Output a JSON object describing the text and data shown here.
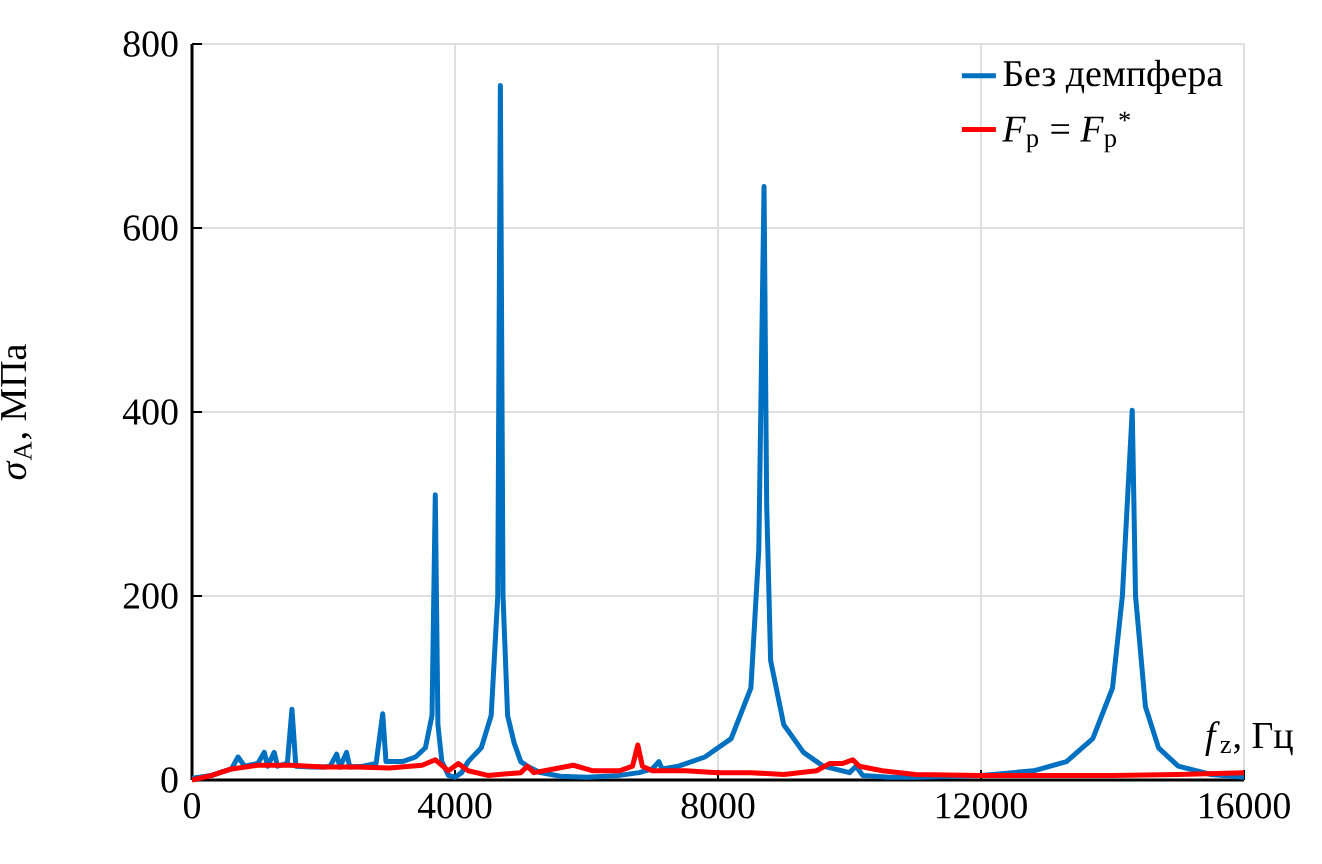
{
  "chart_data": {
    "type": "line",
    "xlabel": "*f*$_{z}$, Гц",
    "ylabel": "*σ*$_{A}$, МПа",
    "xlim": [
      0,
      16000
    ],
    "ylim": [
      0,
      800
    ],
    "xticks": [
      0,
      4000,
      8000,
      12000,
      16000
    ],
    "yticks": [
      0,
      200,
      400,
      600,
      800
    ],
    "grid": true,
    "legend": "top right",
    "marker": "none",
    "line_style": "solid",
    "series": [
      {
        "name": "Без демпфера",
        "color": "#0070c0",
        "x": [
          0,
          300,
          600,
          700,
          800,
          1000,
          1100,
          1150,
          1250,
          1300,
          1450,
          1520,
          1580,
          1800,
          2000,
          2100,
          2200,
          2250,
          2350,
          2400,
          2600,
          2800,
          2900,
          2950,
          3200,
          3400,
          3550,
          3650,
          3700,
          3740,
          3800,
          3900,
          4000,
          4100,
          4200,
          4400,
          4550,
          4650,
          4690,
          4730,
          4800,
          4900,
          5000,
          5100,
          5300,
          5600,
          6000,
          6500,
          6800,
          7000,
          7100,
          7150,
          7400,
          7800,
          8200,
          8500,
          8620,
          8700,
          8740,
          8800,
          9000,
          9300,
          9600,
          10000,
          10100,
          10200,
          10600,
          11000,
          12000,
          12800,
          13300,
          13700,
          14000,
          14150,
          14300,
          14350,
          14500,
          14700,
          15000,
          15500,
          16000
        ],
        "values": [
          2,
          5,
          12,
          25,
          15,
          18,
          30,
          15,
          30,
          15,
          18,
          77,
          15,
          14,
          14,
          15,
          28,
          14,
          30,
          14,
          15,
          18,
          72,
          20,
          20,
          25,
          35,
          70,
          310,
          60,
          20,
          5,
          3,
          8,
          20,
          35,
          70,
          200,
          755,
          200,
          70,
          40,
          20,
          15,
          8,
          4,
          3,
          5,
          8,
          12,
          20,
          12,
          15,
          25,
          45,
          100,
          250,
          645,
          300,
          130,
          60,
          30,
          15,
          8,
          15,
          5,
          3,
          3,
          5,
          10,
          20,
          45,
          100,
          200,
          402,
          200,
          80,
          35,
          15,
          6,
          3
        ]
      },
      {
        "name": "*F*$_{p}$ = *F*$_{p}$$^{*}$",
        "color": "#ff0000",
        "x": [
          0,
          300,
          600,
          1000,
          1500,
          2000,
          2500,
          3000,
          3500,
          3700,
          3900,
          4050,
          4200,
          4500,
          5000,
          5100,
          5200,
          5500,
          5800,
          6100,
          6500,
          6700,
          6780,
          6850,
          7000,
          7500,
          8000,
          8500,
          9000,
          9500,
          9700,
          9900,
          10050,
          10150,
          10500,
          11000,
          12000,
          13000,
          14000,
          15000,
          16000
        ],
        "values": [
          0,
          5,
          12,
          16,
          16,
          14,
          14,
          13,
          16,
          22,
          10,
          18,
          10,
          5,
          8,
          15,
          8,
          12,
          16,
          10,
          10,
          15,
          38,
          15,
          10,
          10,
          8,
          8,
          6,
          10,
          18,
          18,
          22,
          15,
          10,
          6,
          5,
          5,
          5,
          6,
          8
        ]
      }
    ]
  }
}
